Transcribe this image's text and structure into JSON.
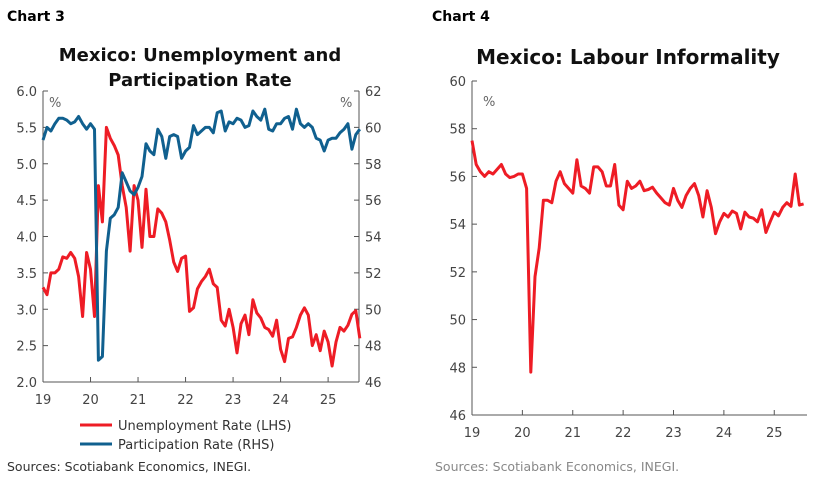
{
  "colors": {
    "red": "#ee1c25",
    "blue": "#10608f",
    "axis": "#555555"
  },
  "chart_data": [
    {
      "label": "Chart 3",
      "type": "line",
      "title": "Mexico: Unemployment and Participation Rate",
      "title_lines": [
        "Mexico: Unemployment and",
        "Participation Rate"
      ],
      "unit_left": "%",
      "unit_right": "%",
      "x_start": "2019-01",
      "x_frequency": "monthly",
      "x_ticks": [
        "19",
        "20",
        "21",
        "22",
        "23",
        "24",
        "25"
      ],
      "xlim": [
        2019,
        2025.65
      ],
      "ylim_left": [
        2.0,
        6.0
      ],
      "yticks_left": [
        "2.0",
        "2.5",
        "3.0",
        "3.5",
        "4.0",
        "4.5",
        "5.0",
        "5.5",
        "6.0"
      ],
      "ylim_right": [
        46,
        62
      ],
      "yticks_right": [
        "46",
        "48",
        "50",
        "52",
        "54",
        "56",
        "58",
        "60",
        "62"
      ],
      "grid": false,
      "legend_position": "bottom",
      "series": [
        {
          "name": "Unemployment Rate (LHS)",
          "axis": "left",
          "color": "#ee1c25",
          "values": [
            3.3,
            3.2,
            3.5,
            3.5,
            3.55,
            3.72,
            3.7,
            3.78,
            3.7,
            3.45,
            2.9,
            3.78,
            3.55,
            2.9,
            4.7,
            4.2,
            5.5,
            5.35,
            5.25,
            5.12,
            4.7,
            4.4,
            3.8,
            4.7,
            4.5,
            3.85,
            4.65,
            4.0,
            4.0,
            4.38,
            4.32,
            4.2,
            3.95,
            3.65,
            3.52,
            3.7,
            3.73,
            2.97,
            3.02,
            3.28,
            3.38,
            3.45,
            3.55,
            3.35,
            3.3,
            2.85,
            2.77,
            3.0,
            2.75,
            2.4,
            2.8,
            2.92,
            2.65,
            3.13,
            2.95,
            2.88,
            2.75,
            2.72,
            2.63,
            2.85,
            2.45,
            2.28,
            2.6,
            2.62,
            2.75,
            2.92,
            3.02,
            2.92,
            2.5,
            2.65,
            2.43,
            2.7,
            2.55,
            2.22,
            2.55,
            2.75,
            2.7,
            2.78,
            2.93,
            2.98,
            2.6
          ]
        },
        {
          "name": "Participation Rate (RHS)",
          "axis": "right",
          "color": "#10608f",
          "values": [
            59.3,
            60.0,
            59.8,
            60.2,
            60.5,
            60.5,
            60.4,
            60.2,
            60.3,
            60.6,
            60.2,
            59.9,
            60.2,
            59.9,
            47.2,
            47.4,
            53.2,
            55.0,
            55.2,
            55.6,
            57.5,
            57.0,
            56.5,
            56.3,
            56.7,
            57.3,
            59.1,
            58.7,
            58.5,
            59.9,
            59.5,
            58.3,
            59.5,
            59.6,
            59.5,
            58.3,
            58.7,
            58.9,
            60.1,
            59.6,
            59.8,
            60.0,
            60.0,
            59.7,
            60.8,
            60.9,
            59.8,
            60.3,
            60.2,
            60.5,
            60.4,
            60.0,
            60.1,
            60.9,
            60.6,
            60.4,
            61.0,
            59.9,
            59.8,
            60.2,
            60.2,
            60.5,
            60.6,
            59.9,
            61.0,
            60.2,
            60.0,
            60.2,
            60.0,
            59.4,
            59.3,
            58.7,
            59.3,
            59.4,
            59.4,
            59.7,
            59.9,
            60.2,
            58.8,
            59.6,
            59.9
          ]
        }
      ],
      "source": "Sources: Scotiabank Economics, INEGI."
    },
    {
      "label": "Chart 4",
      "type": "line",
      "title": "Mexico: Labour Informality",
      "unit_left": "%",
      "x_start": "2019-01",
      "x_frequency": "monthly",
      "x_ticks": [
        "19",
        "20",
        "21",
        "22",
        "23",
        "24",
        "25"
      ],
      "xlim": [
        2019,
        2025.65
      ],
      "ylim_left": [
        46,
        60
      ],
      "yticks_left": [
        "46",
        "48",
        "50",
        "52",
        "54",
        "56",
        "58",
        "60"
      ],
      "grid": false,
      "series": [
        {
          "color": "#ee1c25",
          "values": [
            57.5,
            56.5,
            56.2,
            56.0,
            56.2,
            56.1,
            56.3,
            56.5,
            56.1,
            55.95,
            56.0,
            56.1,
            56.1,
            55.5,
            47.8,
            51.8,
            53.0,
            55.0,
            55.0,
            54.9,
            55.8,
            56.2,
            55.7,
            55.5,
            55.3,
            56.7,
            55.6,
            55.5,
            55.3,
            56.4,
            56.4,
            56.2,
            55.6,
            55.6,
            56.5,
            54.8,
            54.6,
            55.8,
            55.5,
            55.6,
            55.8,
            55.4,
            55.45,
            55.55,
            55.3,
            55.1,
            54.9,
            54.8,
            55.5,
            55.0,
            54.7,
            55.2,
            55.5,
            55.7,
            55.2,
            54.3,
            55.4,
            54.7,
            53.6,
            54.1,
            54.45,
            54.3,
            54.55,
            54.45,
            53.8,
            54.5,
            54.3,
            54.25,
            54.1,
            54.6,
            53.65,
            54.1,
            54.5,
            54.35,
            54.7,
            54.9,
            54.75,
            56.1,
            54.8,
            54.85
          ]
        }
      ],
      "source": "Sources: Scotiabank Economics, INEGI."
    }
  ]
}
